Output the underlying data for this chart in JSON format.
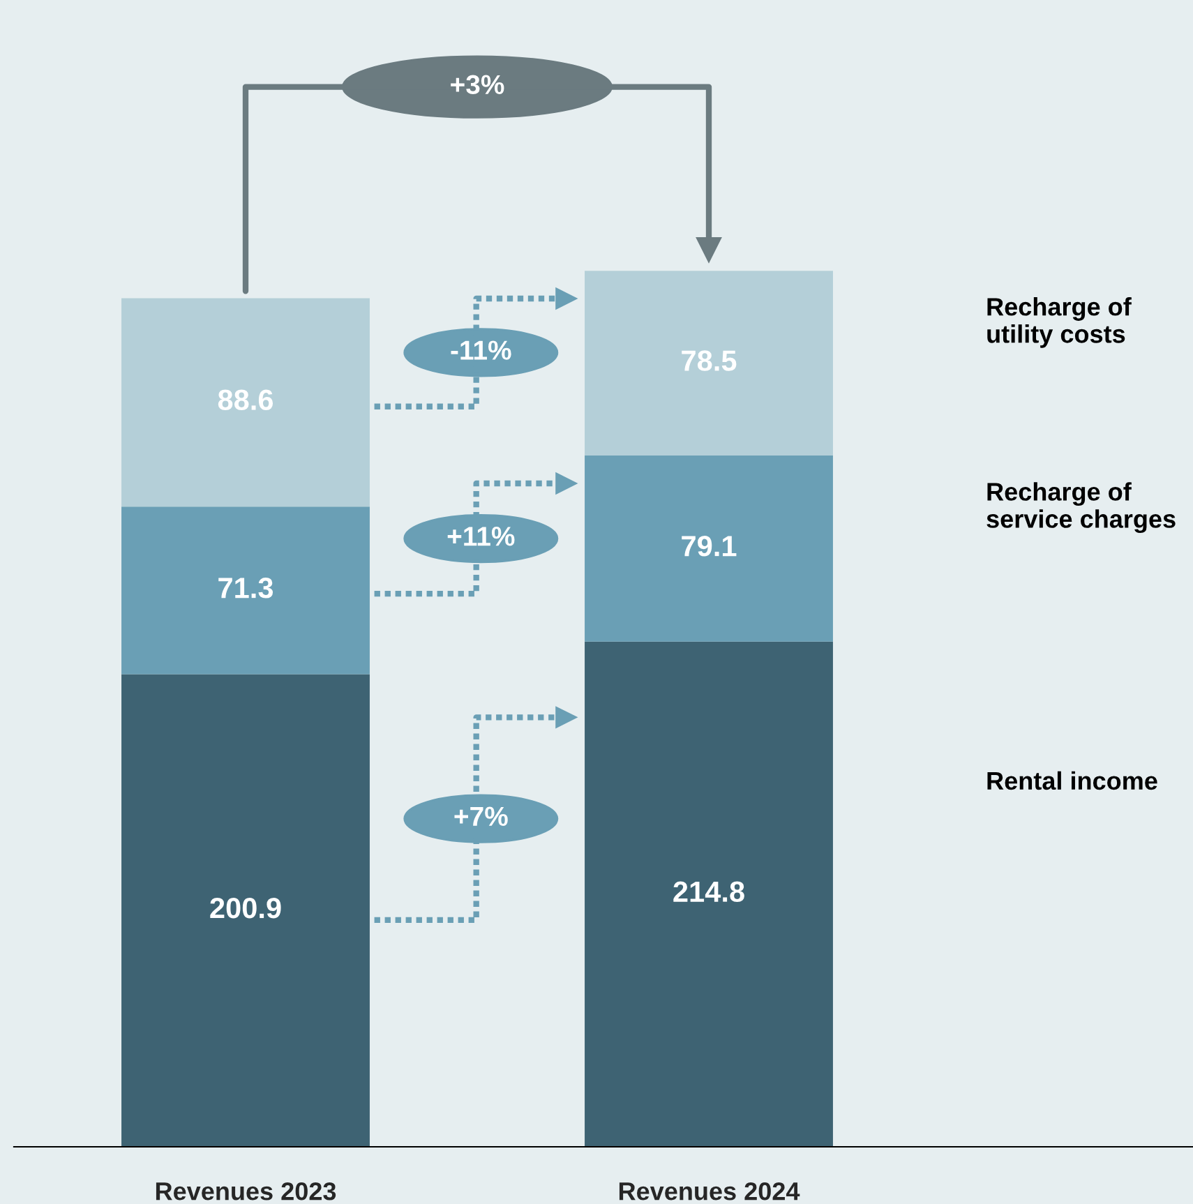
{
  "chart_data": {
    "type": "bar",
    "stacked": true,
    "categories": [
      "Revenues 2023",
      "Revenues 2024"
    ],
    "series": [
      {
        "name": "Rental income",
        "color": "#3e6373",
        "values": [
          200.9,
          214.8
        ]
      },
      {
        "name": "Recharge of service charges",
        "color": "#6a9fb5",
        "values": [
          71.3,
          79.1
        ]
      },
      {
        "name": "Recharge of utility costs",
        "color": "#b4cfd8",
        "values": [
          88.6,
          78.5
        ]
      }
    ],
    "data_labels": true,
    "ylim": [
      0,
      485
    ],
    "tick_labels": "x",
    "grid": false,
    "legend": false,
    "annotations": [
      "+3%",
      "-11%",
      "+11%",
      "+7%"
    ]
  }
}
